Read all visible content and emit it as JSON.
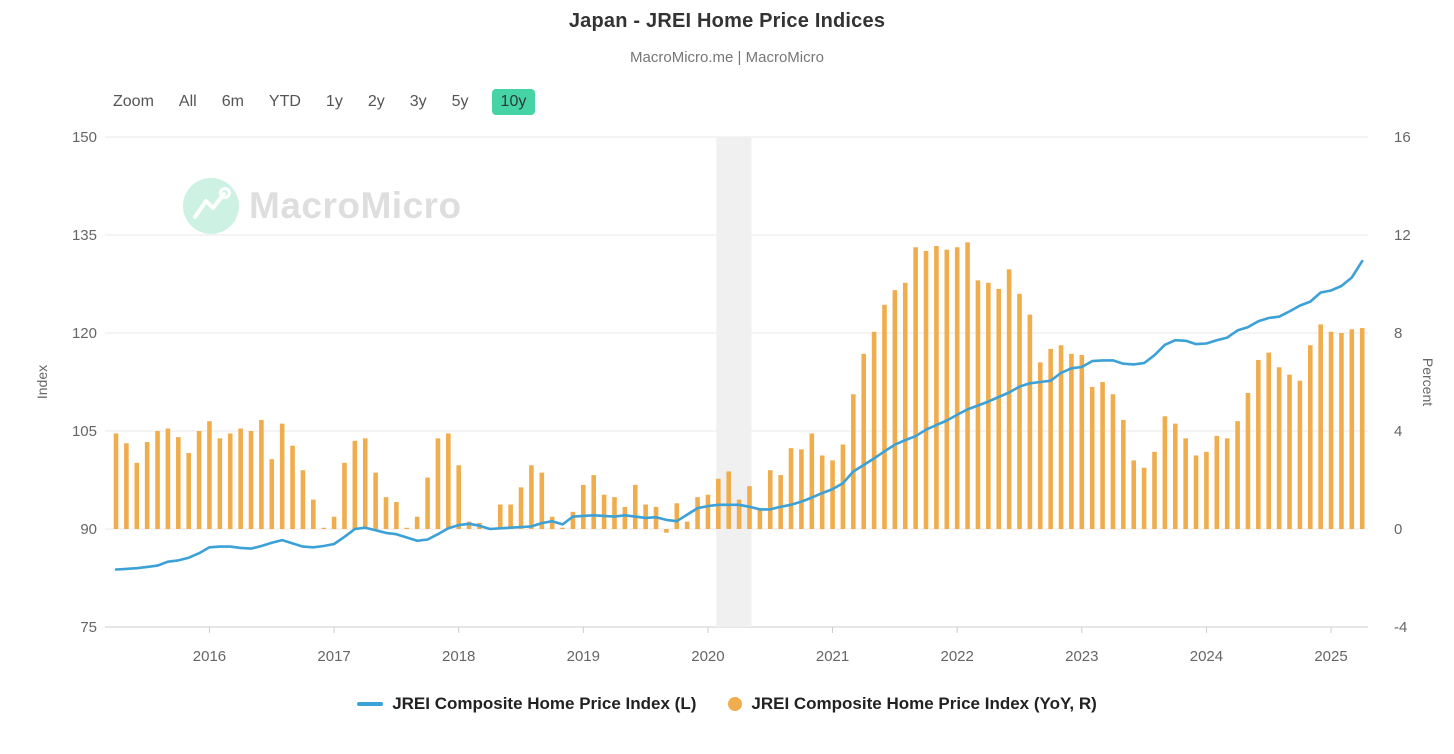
{
  "header": {
    "title": "Japan - JREI Home Price Indices",
    "subtitle": "MacroMicro.me | MacroMicro"
  },
  "toolbar": {
    "zoom_label": "Zoom",
    "ranges": [
      "All",
      "6m",
      "YTD",
      "1y",
      "2y",
      "3y",
      "5y",
      "10y"
    ],
    "active_range": "10y"
  },
  "watermark": {
    "brand": "MacroMicro"
  },
  "colors": {
    "line": "#3CA1D6",
    "bar": "#F0AD4E",
    "active_button": "#46d3a5",
    "gridline": "#e8e8e8",
    "axis_line": "#cccccc",
    "tick_text": "#666666",
    "band": "#f0f0f0"
  },
  "legend": [
    {
      "label": "JREI Composite Home Price Index (L)",
      "marker": "line"
    },
    {
      "label": "JREI Composite Home Price Index (YoY, R)",
      "marker": "circle"
    }
  ],
  "chart_data": {
    "type": "mixed",
    "x": [
      "2015-04",
      "2015-05",
      "2015-06",
      "2015-07",
      "2015-08",
      "2015-09",
      "2015-10",
      "2015-11",
      "2015-12",
      "2016-01",
      "2016-02",
      "2016-03",
      "2016-04",
      "2016-05",
      "2016-06",
      "2016-07",
      "2016-08",
      "2016-09",
      "2016-10",
      "2016-11",
      "2016-12",
      "2017-01",
      "2017-02",
      "2017-03",
      "2017-04",
      "2017-05",
      "2017-06",
      "2017-07",
      "2017-08",
      "2017-09",
      "2017-10",
      "2017-11",
      "2017-12",
      "2018-01",
      "2018-02",
      "2018-03",
      "2018-04",
      "2018-05",
      "2018-06",
      "2018-07",
      "2018-08",
      "2018-09",
      "2018-10",
      "2018-11",
      "2018-12",
      "2019-01",
      "2019-02",
      "2019-03",
      "2019-04",
      "2019-05",
      "2019-06",
      "2019-07",
      "2019-08",
      "2019-09",
      "2019-10",
      "2019-11",
      "2019-12",
      "2020-01",
      "2020-02",
      "2020-03",
      "2020-04",
      "2020-05",
      "2020-06",
      "2020-07",
      "2020-08",
      "2020-09",
      "2020-10",
      "2020-11",
      "2020-12",
      "2021-01",
      "2021-02",
      "2021-03",
      "2021-04",
      "2021-05",
      "2021-06",
      "2021-07",
      "2021-08",
      "2021-09",
      "2021-10",
      "2021-11",
      "2021-12",
      "2022-01",
      "2022-02",
      "2022-03",
      "2022-04",
      "2022-05",
      "2022-06",
      "2022-07",
      "2022-08",
      "2022-09",
      "2022-10",
      "2022-11",
      "2022-12",
      "2023-01",
      "2023-02",
      "2023-03",
      "2023-04",
      "2023-05",
      "2023-06",
      "2023-07",
      "2023-08",
      "2023-09",
      "2023-10",
      "2023-11",
      "2023-12",
      "2024-01",
      "2024-02",
      "2024-03",
      "2024-04",
      "2024-05",
      "2024-06",
      "2024-07",
      "2024-08",
      "2024-09",
      "2024-10",
      "2024-11",
      "2024-12",
      "2025-01",
      "2025-02",
      "2025-03",
      "2025-04"
    ],
    "series": [
      {
        "name": "JREI Composite Home Price Index (L)",
        "type": "line",
        "axis": "left",
        "color": "#3CA1D6",
        "values": [
          83.8,
          83.9,
          84.0,
          84.2,
          84.4,
          85.0,
          85.2,
          85.6,
          86.3,
          87.2,
          87.3,
          87.3,
          87.1,
          87.0,
          87.4,
          87.9,
          88.3,
          87.8,
          87.3,
          87.2,
          87.4,
          87.7,
          88.8,
          90.0,
          90.2,
          89.8,
          89.4,
          89.2,
          88.7,
          88.2,
          88.4,
          89.2,
          90.1,
          90.6,
          90.8,
          90.5,
          90.0,
          90.1,
          90.2,
          90.3,
          90.4,
          90.9,
          91.2,
          90.7,
          91.9,
          92.0,
          92.1,
          92.0,
          91.9,
          92.1,
          91.9,
          91.7,
          91.8,
          91.4,
          91.2,
          92.2,
          93.2,
          93.5,
          93.7,
          93.7,
          93.7,
          93.4,
          93.0,
          93.0,
          93.4,
          93.7,
          94.2,
          94.8,
          95.5,
          96.1,
          97.0,
          98.8,
          99.8,
          100.8,
          101.9,
          102.9,
          103.6,
          104.2,
          105.2,
          105.9,
          106.6,
          107.5,
          108.3,
          108.9,
          109.5,
          110.2,
          110.9,
          111.8,
          112.3,
          112.5,
          112.7,
          113.9,
          114.6,
          114.8,
          115.7,
          115.8,
          115.8,
          115.3,
          115.2,
          115.4,
          116.6,
          118.2,
          118.9,
          118.8,
          118.3,
          118.4,
          118.9,
          119.3,
          120.4,
          120.9,
          121.8,
          122.3,
          122.5,
          123.3,
          124.2,
          124.8,
          126.2,
          126.5,
          127.2,
          128.5,
          131.0
        ]
      },
      {
        "name": "JREI Composite Home Price Index (YoY, R)",
        "type": "bar",
        "axis": "right",
        "color": "#F0AD4E",
        "values": [
          3.9,
          3.5,
          2.7,
          3.55,
          4.0,
          4.1,
          3.75,
          3.1,
          4.0,
          4.4,
          3.7,
          3.9,
          4.1,
          4.0,
          4.45,
          2.85,
          4.3,
          3.4,
          2.4,
          1.2,
          0.05,
          0.5,
          2.7,
          3.6,
          3.7,
          2.3,
          1.3,
          1.1,
          0.05,
          0.5,
          2.1,
          3.7,
          3.9,
          2.6,
          0.3,
          0.25,
          0.05,
          1.0,
          1.0,
          1.7,
          2.6,
          2.3,
          0.5,
          0.05,
          0.7,
          1.8,
          2.2,
          1.4,
          1.3,
          0.9,
          1.8,
          1.0,
          0.9,
          -0.15,
          1.05,
          0.3,
          1.3,
          1.4,
          2.05,
          2.35,
          1.2,
          1.75,
          0.85,
          2.4,
          2.2,
          3.3,
          3.25,
          3.9,
          3.0,
          2.8,
          3.45,
          5.5,
          7.15,
          8.05,
          9.15,
          9.75,
          10.05,
          11.5,
          11.35,
          11.55,
          11.4,
          11.5,
          11.7,
          10.15,
          10.05,
          9.8,
          10.6,
          9.6,
          8.75,
          6.8,
          7.35,
          7.5,
          7.15,
          7.1,
          5.8,
          6.0,
          5.5,
          4.45,
          2.8,
          2.5,
          3.15,
          4.6,
          4.3,
          3.7,
          3.0,
          3.15,
          3.8,
          3.7,
          4.4,
          5.55,
          6.9,
          7.2,
          6.6,
          6.3,
          6.05,
          7.5,
          8.35,
          8.05,
          8.0,
          8.15,
          8.2
        ]
      }
    ],
    "left_axis": {
      "title": "Index",
      "min": 75,
      "max": 150,
      "ticks": [
        150,
        135,
        120,
        105,
        90,
        75
      ]
    },
    "right_axis": {
      "title": "Percent",
      "min": -4,
      "max": 16,
      "ticks": [
        16,
        12,
        8,
        4,
        0,
        -4
      ]
    },
    "x_axis": {
      "tick_labels": [
        "2016",
        "2017",
        "2018",
        "2019",
        "2020",
        "2021",
        "2022",
        "2023",
        "2024",
        "2025"
      ]
    },
    "recession_band": {
      "from": "2020-02",
      "to": "2020-05"
    },
    "grid": true,
    "legend_position": "bottom"
  }
}
